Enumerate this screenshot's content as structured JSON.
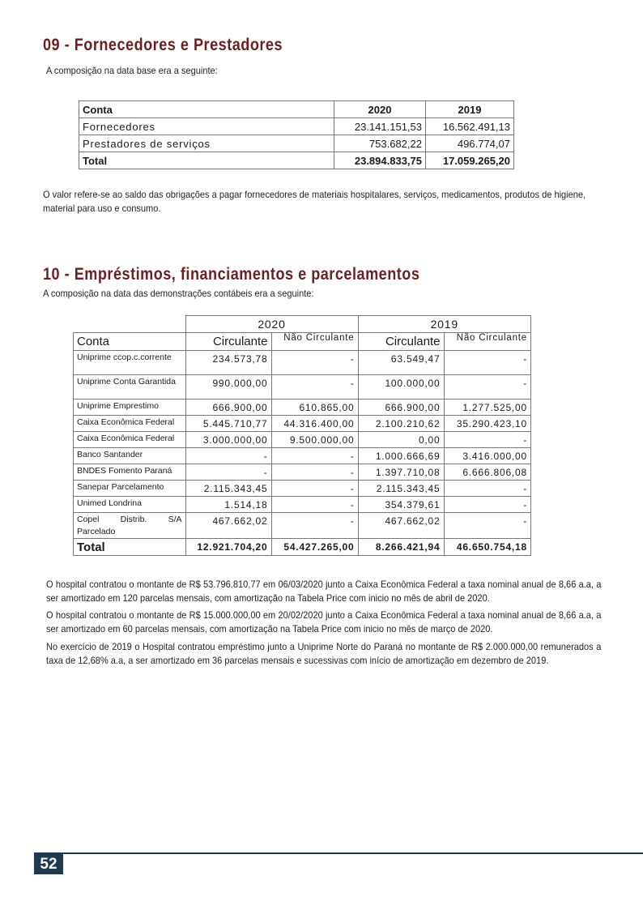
{
  "section09": {
    "title": "09 - Fornecedores e Prestadores",
    "intro": "A composição na data base era a seguinte:",
    "table": {
      "headers": [
        "Conta",
        "2020",
        "2019"
      ],
      "rows": [
        [
          "Fornecedores",
          "23.141.151,53",
          "16.562.491,13"
        ],
        [
          "Prestadores de serviços",
          "753.682,22",
          "496.774,07"
        ]
      ],
      "total": [
        "Total",
        "23.894.833,75",
        "17.059.265,20"
      ]
    },
    "note": "O valor refere-se ao saldo das obrigações a pagar fornecedores de materiais hospitalares, serviços, medicamentos, produtos de higiene, material para uso e consumo."
  },
  "section10": {
    "title": "10 - Empréstimos, financiamentos e parcelamentos",
    "intro": "A composição na data das demonstrações contábeis era a seguinte:",
    "table": {
      "years": [
        "2020",
        "2019"
      ],
      "headers": [
        "Conta",
        "Circulante",
        "Não Circulante",
        "Circulante",
        "Não Circulante"
      ],
      "rows": [
        [
          "Uniprime ccop.c.corrente",
          "234.573,78",
          "-",
          "63.549,47",
          "-"
        ],
        [
          "Uniprime Conta Garantida",
          "990.000,00",
          "-",
          "100.000,00",
          "-"
        ],
        [
          "Uniprime Emprestimo",
          "666.900,00",
          "610.865,00",
          "666.900,00",
          "1.277.525,00"
        ],
        [
          "Caixa Econômica Federal",
          "5.445.710,77",
          "44.316.400,00",
          "2.100.210,62",
          "35.290.423,10"
        ],
        [
          "Caixa Econômica Federal",
          "3.000.000,00",
          "9.500.000,00",
          "0,00",
          "-"
        ],
        [
          "Banco Santander",
          "-",
          "-",
          "1.000.666,69",
          "3.416.000,00"
        ],
        [
          "BNDES Fomento Paraná",
          "-",
          "-",
          "1.397.710,08",
          "6.666.806,08"
        ],
        [
          "Sanepar Parcelamento",
          "2.115.343,45",
          "-",
          "2.115.343,45",
          "-"
        ],
        [
          "Unimed Londrina",
          "1.514,18",
          "-",
          "354.379,61",
          "-"
        ],
        [
          "Copel Distrib. S/A Parcelado",
          "467.662,02",
          "-",
          "467.662,02",
          "-"
        ]
      ],
      "total": [
        "Total",
        "12.921.704,20",
        "54.427.265,00",
        "8.266.421,94",
        "46.650.754,18"
      ]
    },
    "paragraphs": [
      "O hospital contratou o montante de R$ 53.796.810,77 em 06/03/2020 junto a Caixa Econômica Federal a taxa nominal anual de 8,66 a.a, a ser amortizado em 120 parcelas mensais, com amortização na Tabela Price com inicio no mês de abril de 2020.",
      "O hospital contratou o montante de R$ 15.000.000,00 em 20/02/2020 junto a Caixa Econômica Federal a taxa nominal anual de 8,66 a.a, a ser amortizado em 60 parcelas mensais, com amortização na Tabela Price com inicio no mês de março de 2020.",
      "No exercício de 2019 o Hospital contratou empréstimo junto a Uniprime Norte do Paraná no montante de R$ 2.000.000,00 remunerados a taxa de 12,68% a.a, a ser amortizado em 36 parcelas mensais e sucessivas com início de amortização em dezembro de 2019."
    ]
  },
  "footer": {
    "page_number": "52",
    "accent_color": "#1f3a4d"
  },
  "colors": {
    "title": "#6a1f22"
  }
}
